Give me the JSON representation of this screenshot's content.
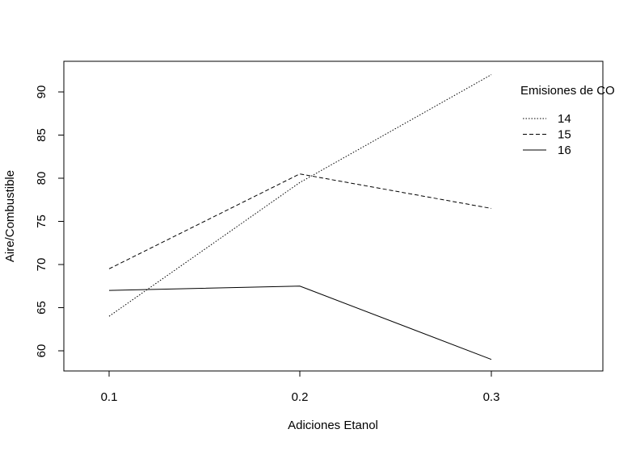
{
  "chart_data": {
    "type": "line",
    "title": "",
    "xlabel": "Adiciones Etanol",
    "ylabel": "Aire/Combustible",
    "categories": [
      "0.1",
      "0.2",
      "0.3"
    ],
    "ylim": [
      57.7,
      93.2
    ],
    "yticks": [
      60,
      65,
      70,
      75,
      80,
      85,
      90
    ],
    "grid": false,
    "legend": {
      "title": "Emisiones de CO",
      "placement": "top-right"
    },
    "series": [
      {
        "name": "14",
        "line_style": "dotted",
        "values": [
          64.0,
          79.5,
          92.0
        ]
      },
      {
        "name": "15",
        "line_style": "dashed",
        "values": [
          69.5,
          80.5,
          76.5
        ]
      },
      {
        "name": "16",
        "line_style": "solid",
        "values": [
          67.0,
          67.5,
          59.0
        ]
      }
    ],
    "colors": {
      "line": "#000000",
      "background": "#ffffff"
    }
  }
}
